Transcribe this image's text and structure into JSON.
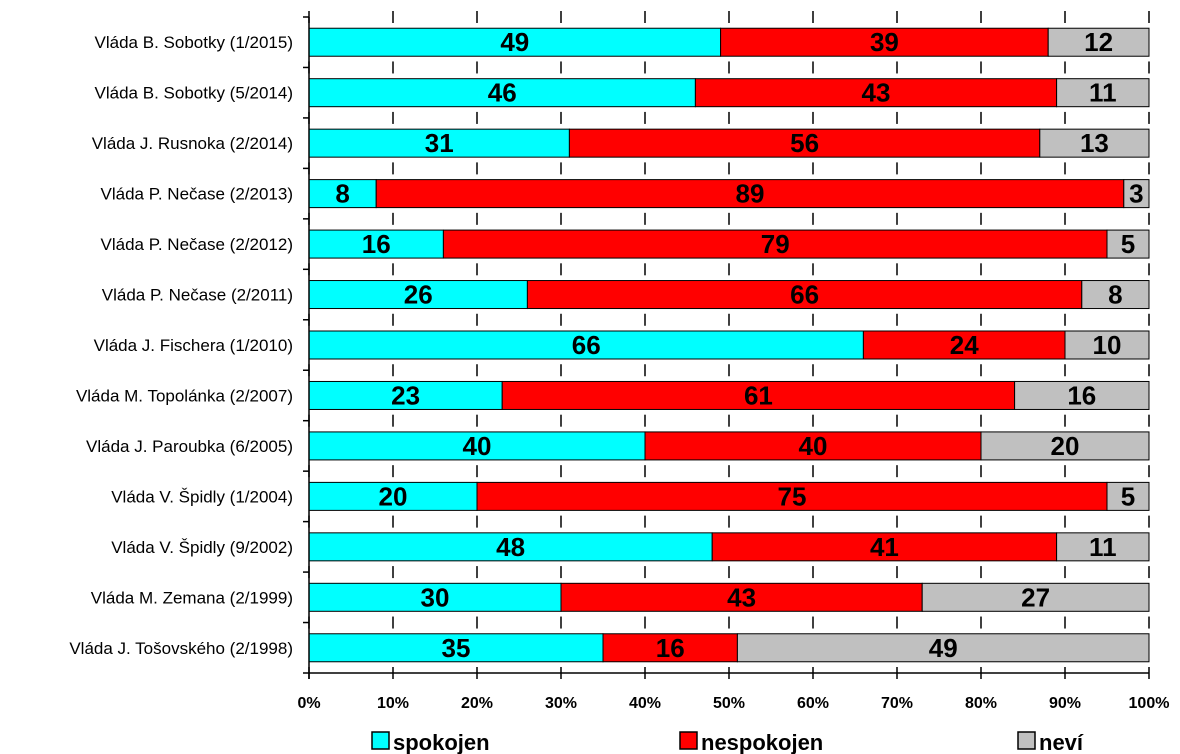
{
  "chart_data": {
    "type": "bar",
    "orientation": "horizontal",
    "stacked": true,
    "categories": [
      "Vláda B. Sobotky (1/2015)",
      "Vláda B. Sobotky (5/2014)",
      "Vláda J. Rusnoka (2/2014)",
      "Vláda P. Nečase (2/2013)",
      "Vláda P. Nečase (2/2012)",
      "Vláda P. Nečase (2/2011)",
      "Vláda J. Fischera (1/2010)",
      "Vláda M. Topolánka (2/2007)",
      "Vláda J. Paroubka (6/2005)",
      "Vláda V. Špidly (1/2004)",
      "Vláda V. Špidly (9/2002)",
      "Vláda M. Zemana (2/1999)",
      "Vláda J. Tošovského (2/1998)"
    ],
    "series": [
      {
        "name": "spokojen",
        "color": "#00ffff",
        "values": [
          49,
          46,
          31,
          8,
          16,
          26,
          66,
          23,
          40,
          20,
          48,
          30,
          35
        ]
      },
      {
        "name": "nespokojen",
        "color": "#ff0000",
        "values": [
          39,
          43,
          56,
          89,
          79,
          66,
          24,
          61,
          40,
          75,
          41,
          43,
          16
        ]
      },
      {
        "name": "neví",
        "color": "#c0c0c0",
        "values": [
          12,
          11,
          13,
          3,
          5,
          8,
          10,
          16,
          20,
          5,
          11,
          27,
          49
        ]
      }
    ],
    "xlim": [
      0,
      100
    ],
    "x_ticks": [
      "0%",
      "10%",
      "20%",
      "30%",
      "40%",
      "50%",
      "60%",
      "70%",
      "80%",
      "90%",
      "100%"
    ],
    "legend_position": "bottom",
    "grid": false
  }
}
